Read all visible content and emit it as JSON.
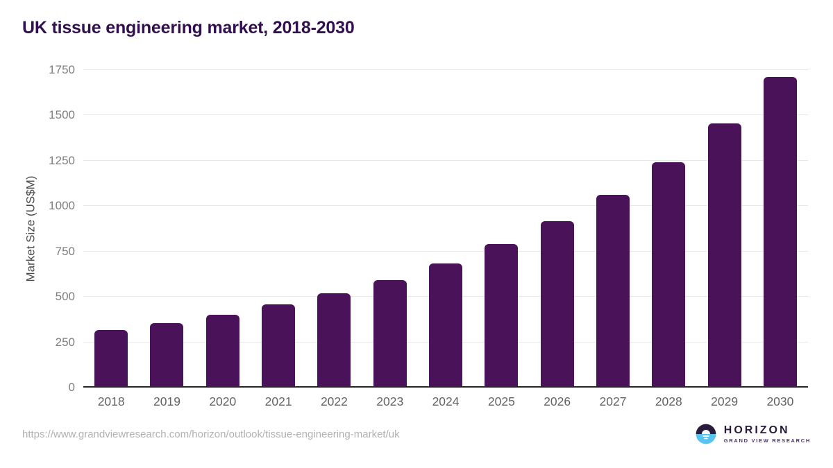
{
  "page": {
    "title": "UK tissue engineering market, 2018-2030",
    "source_url": "https://www.grandviewresearch.com/horizon/outlook/tissue-engineering-market/uk"
  },
  "logo": {
    "name": "HORIZON",
    "subtitle": "GRAND VIEW RESEARCH",
    "icon": "horizon-sunset-circle-icon"
  },
  "colors": {
    "bar": "#4a1259",
    "title": "#321050",
    "y_tick_label": "#7d7d7d",
    "x_tick_label": "#636363",
    "axis_title": "#4a4a4a",
    "gridline": "#e8e8e8",
    "baseline": "#262626",
    "source_url": "#b1b1b1",
    "logo_dark": "#2a1b3d",
    "logo_blue": "#56c3f0"
  },
  "chart_data": {
    "type": "bar",
    "title": "UK tissue engineering market, 2018-2030",
    "xlabel": "",
    "ylabel": "Market Size (US$M)",
    "categories": [
      "2018",
      "2019",
      "2020",
      "2021",
      "2022",
      "2023",
      "2024",
      "2025",
      "2026",
      "2027",
      "2028",
      "2029",
      "2030"
    ],
    "values": [
      317,
      357,
      403,
      457,
      520,
      592,
      683,
      790,
      916,
      1063,
      1240,
      1455,
      1710
    ],
    "ylim": [
      0,
      1750
    ],
    "y_ticks": [
      0,
      250,
      500,
      750,
      1000,
      1250,
      1500,
      1750
    ],
    "grid": "horizontal",
    "legend": "none",
    "bar_color": "#4a1259"
  }
}
